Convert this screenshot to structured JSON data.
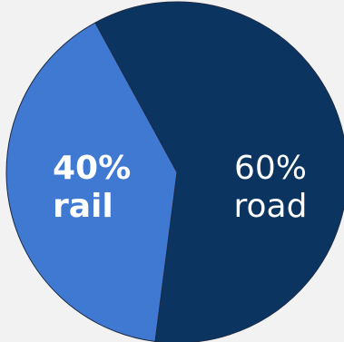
{
  "chart_data": {
    "type": "pie",
    "slices": [
      {
        "label": "road",
        "value": 60,
        "percent_label": "60%",
        "color": "#0b3560",
        "label_bold": false
      },
      {
        "label": "rail",
        "value": 40,
        "percent_label": "40%",
        "color": "#3f79d2",
        "label_bold": true
      }
    ],
    "title": "",
    "legend": "none",
    "background": "#f2f2f2",
    "slice_border_color": "#1d2b45"
  }
}
